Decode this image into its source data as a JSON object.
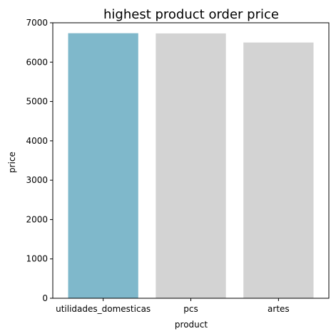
{
  "chart_data": {
    "type": "bar",
    "title": "highest product order price",
    "xlabel": "product",
    "ylabel": "price",
    "categories": [
      "utilidades_domesticas",
      "pcs",
      "artes"
    ],
    "values": [
      6735,
      6730,
      6499
    ],
    "ylim": [
      0,
      7000
    ],
    "yticks": [
      0,
      1000,
      2000,
      3000,
      4000,
      5000,
      6000,
      7000
    ],
    "grid": false,
    "colors": [
      "#7fb8cb",
      "#d3d3d3",
      "#d3d3d3"
    ],
    "axis_color": "#000000"
  }
}
